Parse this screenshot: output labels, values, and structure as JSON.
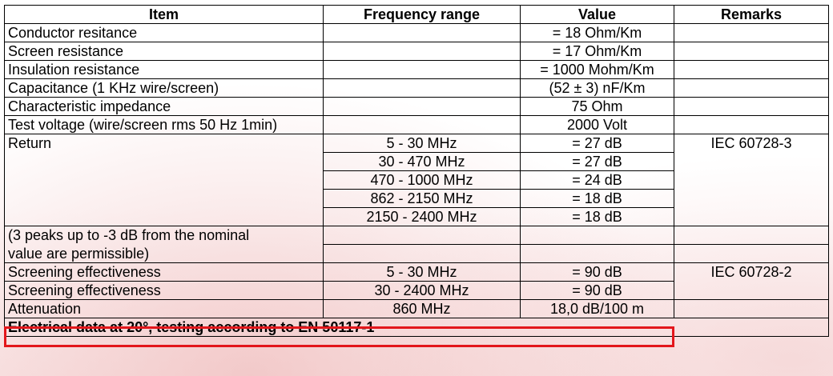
{
  "headers": {
    "item": "Item",
    "frequency": "Frequency range",
    "value": "Value",
    "remarks": "Remarks"
  },
  "rows": {
    "conductor": {
      "item": "Conductor resitance",
      "frequency": "",
      "value": "= 18 Ohm/Km",
      "remarks": ""
    },
    "screen": {
      "item": "Screen resistance",
      "frequency": "",
      "value": "= 17 Ohm/Km",
      "remarks": ""
    },
    "insulation": {
      "item": "Insulation resistance",
      "frequency": "",
      "value": "= 1000 Mohm/Km",
      "remarks": ""
    },
    "capacitance": {
      "item": "Capacitance (1 KHz wire/screen)",
      "frequency": "",
      "value": "(52 ± 3) nF/Km",
      "remarks": ""
    },
    "impedance": {
      "item": "Characteristic impedance",
      "frequency": "",
      "value": "75 Ohm",
      "remarks": ""
    },
    "voltage": {
      "item": "Test voltage (wire/screen rms 50 Hz 1min)",
      "frequency": "",
      "value": "2000 Volt",
      "remarks": ""
    }
  },
  "return": {
    "item": "Return",
    "remarks": "IEC 60728-3",
    "bands": [
      {
        "frequency": "5 - 30 MHz",
        "value": "= 27 dB"
      },
      {
        "frequency": "30 - 470 MHz",
        "value": "= 27 dB"
      },
      {
        "frequency": "470 - 1000 MHz",
        "value": "= 24 dB"
      },
      {
        "frequency": "862 - 2150 MHz",
        "value": "= 18 dB"
      },
      {
        "frequency": "2150 - 2400 MHz",
        "value": "= 18 dB"
      }
    ]
  },
  "note": {
    "line1": "(3 peaks up to -3 dB from the nominal",
    "line2": "value are permissible)"
  },
  "screening": [
    {
      "item": "Screening effectiveness",
      "frequency": "5 - 30 MHz",
      "value": "= 90 dB",
      "remarks": "IEC 60728-2"
    },
    {
      "item": "Screening effectiveness",
      "frequency": "30 - 2400 MHz",
      "value": "= 90 dB",
      "remarks": ""
    }
  ],
  "attenuation": {
    "item": "Attenuation",
    "frequency": "860 MHz",
    "value": "18,0 dB/100 m",
    "remarks": ""
  },
  "footer": "Electrical data at 20°, testing according to EN 50117-1",
  "colors": {
    "highlight": "#e3161b"
  }
}
